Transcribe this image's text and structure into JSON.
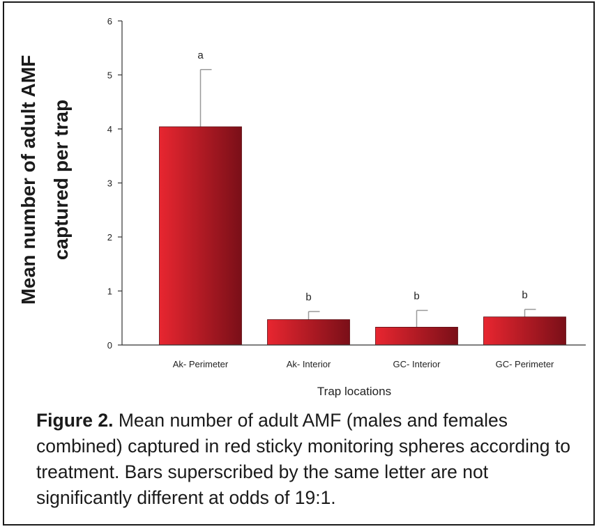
{
  "chart_data": {
    "type": "bar",
    "categories": [
      "Ak- Perimeter",
      "Ak- Interior",
      "GC- Interior",
      "GC- Perimeter"
    ],
    "values": [
      4.04,
      0.47,
      0.33,
      0.52
    ],
    "error_upper": [
      5.1,
      0.62,
      0.64,
      0.66
    ],
    "significance_letters": [
      "a",
      "b",
      "b",
      "b"
    ],
    "xlabel": "Trap locations",
    "ylabel_line1": "Mean number of adult AMF",
    "ylabel_line2": "captured per trap",
    "ylim": [
      0,
      6
    ],
    "yticks": [
      "0",
      "1",
      "2",
      "3",
      "4",
      "5",
      "6"
    ],
    "grid": false,
    "colors": {
      "bar_light": "#e82630",
      "bar_dark": "#7a0f18",
      "error_bar": "#999999"
    }
  },
  "caption": {
    "label": "Figure 2.",
    "text": " Mean number of adult AMF (males and females combined) captured in red sticky monitoring spheres according to treatment. Bars superscribed by the same letter are not significantly different at odds of 19:1."
  }
}
